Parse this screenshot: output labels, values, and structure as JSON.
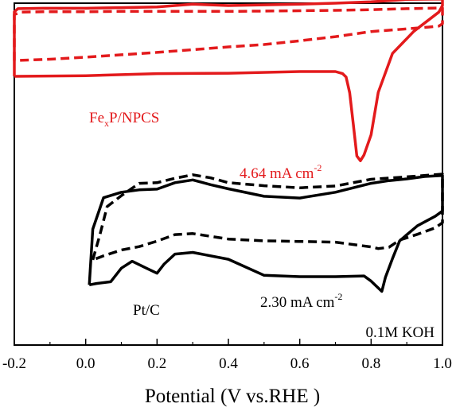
{
  "chart_data": {
    "type": "line",
    "title": "",
    "xlabel": "Potential (V vs.RHE )",
    "ylabel": "",
    "xlim": [
      -0.2,
      1.0
    ],
    "ylim": [
      0,
      100
    ],
    "x_ticks": [
      -0.2,
      0.0,
      0.2,
      0.4,
      0.6,
      0.8,
      1.0
    ],
    "x_tick_labels": [
      "-0.2",
      "0.0",
      "0.2",
      "0.4",
      "0.6",
      "0.8",
      "1.0"
    ],
    "y_ticks_shown": false,
    "grid": false,
    "colors": {
      "fexp": "#e31a1c",
      "ptc": "#000000"
    },
    "series": [
      {
        "sample": "FexP/NPCS",
        "style": "solid",
        "color": "#e31a1c",
        "x": [
          -0.2,
          -0.2,
          -0.19,
          -0.12,
          0.0,
          0.1,
          0.2,
          0.3,
          0.4,
          0.5,
          0.6,
          0.7,
          0.8,
          0.9,
          1.0,
          1.0,
          0.99,
          0.92,
          0.86,
          0.82,
          0.8,
          0.78,
          0.77,
          0.76,
          0.75,
          0.74,
          0.73,
          0.72,
          0.7,
          0.6,
          0.4,
          0.2,
          0.0,
          -0.2
        ],
        "y": [
          78.6,
          97.5,
          98.4,
          98.5,
          98.5,
          98.7,
          98.9,
          99.7,
          99.3,
          99.5,
          99.7,
          100.0,
          100.4,
          101.1,
          101.2,
          99.3,
          97.4,
          91.8,
          85.3,
          73.9,
          61.5,
          55.6,
          53.9,
          55.3,
          64.7,
          73.8,
          78.4,
          79.4,
          80.0,
          80.0,
          79.5,
          79.4,
          78.8,
          78.6
        ]
      },
      {
        "sample": "FexP/NPCS",
        "style": "dashed",
        "color": "#e31a1c",
        "x": [
          -0.2,
          -0.2,
          -0.18,
          -0.12,
          0.0,
          0.1,
          0.2,
          0.3,
          0.4,
          0.5,
          0.6,
          0.7,
          0.8,
          0.9,
          1.0,
          1.0,
          0.99,
          0.96,
          0.9,
          0.8,
          0.7,
          0.6,
          0.5,
          0.4,
          0.3,
          0.2,
          0.1,
          0.0,
          -0.1,
          -0.2
        ],
        "y": [
          83.2,
          96.7,
          97.4,
          97.5,
          97.5,
          97.6,
          97.6,
          97.6,
          97.6,
          97.7,
          97.8,
          97.9,
          98.1,
          98.4,
          98.6,
          94.0,
          93.3,
          93.0,
          92.5,
          91.7,
          90.2,
          89.0,
          87.9,
          87.2,
          86.4,
          85.6,
          84.9,
          84.2,
          83.6,
          83.2
        ]
      },
      {
        "sample": "Pt/C",
        "style": "solid",
        "color": "#000000",
        "x": [
          0.01,
          0.02,
          0.05,
          0.1,
          0.15,
          0.2,
          0.25,
          0.3,
          0.35,
          0.4,
          0.5,
          0.6,
          0.7,
          0.8,
          0.85,
          0.9,
          0.95,
          1.0,
          1.0,
          0.98,
          0.93,
          0.88,
          0.86,
          0.84,
          0.83,
          0.8,
          0.78,
          0.7,
          0.6,
          0.5,
          0.4,
          0.3,
          0.25,
          0.22,
          0.2,
          0.17,
          0.13,
          0.1,
          0.07,
          0.03,
          0.01
        ],
        "y": [
          17.6,
          33.9,
          43.1,
          44.7,
          45.4,
          45.6,
          47.5,
          48.3,
          46.9,
          45.7,
          43.5,
          43.0,
          44.7,
          47.3,
          48.1,
          48.6,
          49.3,
          49.6,
          39.2,
          37.7,
          34.9,
          30.5,
          25.3,
          19.8,
          15.7,
          18.7,
          20.2,
          20.0,
          20.0,
          20.4,
          25.1,
          27.1,
          26.6,
          23.7,
          21.0,
          22.5,
          24.5,
          22.5,
          18.5,
          18.0,
          17.6
        ]
      },
      {
        "sample": "Pt/C",
        "style": "dashed",
        "color": "#000000",
        "x": [
          0.02,
          0.04,
          0.06,
          0.1,
          0.15,
          0.2,
          0.25,
          0.3,
          0.35,
          0.4,
          0.5,
          0.6,
          0.7,
          0.8,
          0.9,
          1.0,
          1.0,
          0.98,
          0.93,
          0.88,
          0.85,
          0.82,
          0.8,
          0.7,
          0.6,
          0.5,
          0.4,
          0.3,
          0.25,
          0.2,
          0.15,
          0.1,
          0.05,
          0.02
        ],
        "y": [
          24.9,
          32.3,
          40.5,
          43.7,
          47.3,
          47.5,
          48.8,
          49.8,
          48.9,
          47.5,
          46.6,
          46.0,
          46.5,
          48.5,
          49.2,
          50.0,
          35.8,
          34.3,
          32.4,
          30.7,
          28.6,
          28.2,
          28.7,
          30.1,
          30.3,
          30.5,
          31.0,
          32.6,
          32.3,
          30.4,
          28.8,
          27.8,
          26.1,
          24.9
        ]
      }
    ],
    "annotations": {
      "fexp_label_main": "Fe",
      "fexp_label_sub": "x",
      "fexp_label_rest": "P/NPCS",
      "fexp_peak_main": "4.64 mA cm",
      "fexp_peak_sup": "-2",
      "ptc_label": "Pt/C",
      "ptc_peak_main": "2.30 mA cm",
      "ptc_peak_sup": "-2",
      "electrolyte": "0.1M KOH"
    }
  }
}
